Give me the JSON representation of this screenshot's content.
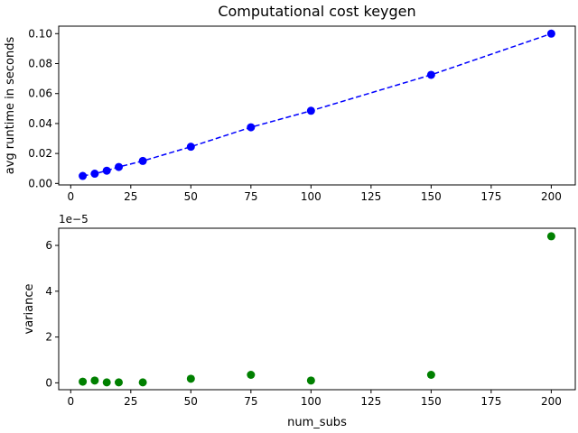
{
  "chart_data": [
    {
      "type": "line",
      "title": "Computational cost keygen",
      "xlabel": "",
      "ylabel": "avg runtime in seconds",
      "xlim": [
        -5,
        210
      ],
      "ylim": [
        -0.001,
        0.105
      ],
      "x_ticks": [
        0,
        25,
        50,
        75,
        100,
        125,
        150,
        175,
        200
      ],
      "y_ticks": [
        0.0,
        0.02,
        0.04,
        0.06,
        0.08,
        0.1
      ],
      "y_tick_labels": [
        "0.00",
        "0.02",
        "0.04",
        "0.06",
        "0.08",
        "0.10"
      ],
      "grid": false,
      "line_style": "dashed",
      "marker": "circle",
      "color": "#0000ff",
      "series": [
        {
          "x": [
            5,
            10,
            15,
            20,
            30,
            50,
            75,
            100,
            150,
            200
          ],
          "y": [
            0.005,
            0.0065,
            0.0085,
            0.011,
            0.015,
            0.0245,
            0.0375,
            0.0485,
            0.0725,
            0.1
          ]
        }
      ]
    },
    {
      "type": "scatter",
      "title": "",
      "xlabel": "num_subs",
      "ylabel": "variance",
      "offset_label": "1e−5",
      "scale": 1e-05,
      "xlim": [
        -5,
        210
      ],
      "ylim": [
        -0.3,
        6.75
      ],
      "x_ticks": [
        0,
        25,
        50,
        75,
        100,
        125,
        150,
        175,
        200
      ],
      "y_ticks": [
        0,
        2,
        4,
        6
      ],
      "grid": false,
      "marker": "circle",
      "color": "#008000",
      "series": [
        {
          "x": [
            5,
            10,
            15,
            20,
            30,
            50,
            75,
            100,
            150,
            200
          ],
          "y": [
            0.05,
            0.1,
            0.02,
            0.02,
            0.02,
            0.18,
            0.35,
            0.1,
            0.35,
            6.4
          ]
        }
      ]
    }
  ]
}
